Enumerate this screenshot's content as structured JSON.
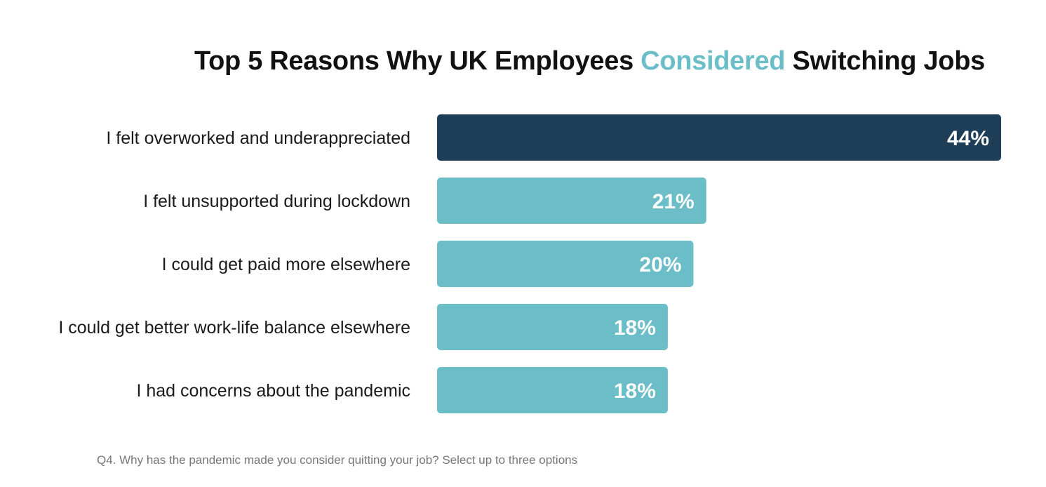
{
  "title": {
    "part1": "Top 5 Reasons Why UK Employees ",
    "highlight": "Considered",
    "part2": " Switching Jobs"
  },
  "footnote": "Q4. Why has the pandemic made you consider quitting your job? Select up to three options",
  "colors": {
    "highlight_bar": "#1e3d56",
    "bar": "#6bbdc8",
    "title_accent": "#6bbdc8"
  },
  "chart_data": {
    "type": "bar",
    "orientation": "horizontal",
    "title": "Top 5 Reasons Why UK Employees Considered Switching Jobs",
    "categories": [
      "I felt overworked and underappreciated",
      "I felt unsupported during lockdown",
      "I could get paid more elsewhere",
      "I could get better work-life balance elsewhere",
      "I had concerns about the pandemic"
    ],
    "values": [
      44,
      21,
      20,
      18,
      18
    ],
    "value_labels": [
      "44%",
      "21%",
      "20%",
      "18%",
      "18%"
    ],
    "unit": "%",
    "xlim": [
      0,
      44
    ],
    "grid": false,
    "legend": "none"
  }
}
